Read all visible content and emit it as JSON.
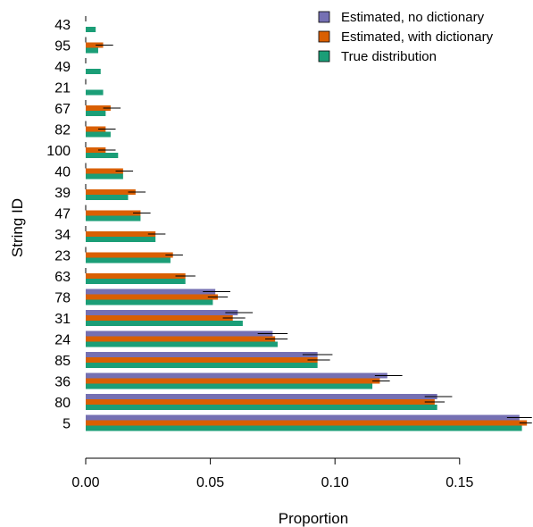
{
  "chart_data": {
    "type": "bar",
    "orientation": "horizontal",
    "xlabel": "Proportion",
    "ylabel": "String ID",
    "xlim": [
      0,
      0.18
    ],
    "x_ticks": [
      "0.00",
      "0.05",
      "0.10",
      "0.15"
    ],
    "x_tick_values": [
      0,
      0.05,
      0.1,
      0.15
    ],
    "legend_position": "top-right",
    "grid": false,
    "categories": [
      "43",
      "95",
      "49",
      "21",
      "67",
      "82",
      "100",
      "40",
      "39",
      "47",
      "34",
      "23",
      "63",
      "78",
      "31",
      "24",
      "85",
      "36",
      "80",
      "5"
    ],
    "series": [
      {
        "name": "Estimated, no dictionary",
        "color": "#7570B3",
        "values": [
          0,
          0,
          0,
          0,
          0,
          0,
          0,
          0,
          0,
          0,
          0,
          0,
          0,
          0.052,
          0.061,
          0.075,
          0.093,
          0.121,
          0.141,
          0.174
        ],
        "err_low": [
          0,
          0,
          0,
          0,
          0,
          0,
          0,
          0,
          0,
          0,
          0,
          0,
          0,
          0.047,
          0.056,
          0.069,
          0.087,
          0.116,
          0.136,
          0.169
        ],
        "err_high": [
          0,
          0,
          0,
          0,
          0,
          0,
          0,
          0,
          0,
          0,
          0,
          0,
          0,
          0.058,
          0.067,
          0.081,
          0.099,
          0.127,
          0.147,
          0.179
        ]
      },
      {
        "name": "Estimated, with dictionary",
        "color": "#D95F02",
        "values": [
          0,
          0.007,
          0,
          0,
          0.01,
          0.008,
          0.008,
          0.015,
          0.02,
          0.022,
          0.028,
          0.035,
          0.04,
          0.053,
          0.059,
          0.076,
          0.093,
          0.118,
          0.14,
          0.177
        ],
        "err_low": [
          0,
          0.004,
          0,
          0,
          0.007,
          0.005,
          0.005,
          0.012,
          0.017,
          0.019,
          0.025,
          0.032,
          0.036,
          0.049,
          0.055,
          0.072,
          0.089,
          0.115,
          0.136,
          0.174
        ],
        "err_high": [
          0,
          0.011,
          0,
          0,
          0.014,
          0.012,
          0.012,
          0.019,
          0.024,
          0.026,
          0.032,
          0.039,
          0.044,
          0.057,
          0.064,
          0.081,
          0.098,
          0.122,
          0.144,
          0.179
        ]
      },
      {
        "name": "True distribution",
        "color": "#1B9E77",
        "values": [
          0.004,
          0.005,
          0.006,
          0.007,
          0.008,
          0.01,
          0.013,
          0.015,
          0.017,
          0.022,
          0.028,
          0.034,
          0.04,
          0.051,
          0.063,
          0.077,
          0.093,
          0.115,
          0.141,
          0.175
        ]
      }
    ]
  }
}
